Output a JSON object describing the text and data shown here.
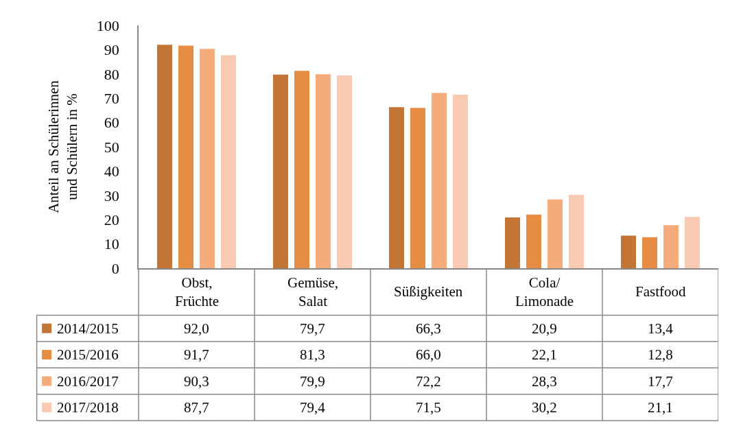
{
  "chart_data": {
    "type": "bar",
    "ylabel": "Anteil an Schülerinnen\nund Schülern in %",
    "categories": [
      "Obst,\nFrüchte",
      "Gemüse,\nSalat",
      "Süßigkeiten",
      "Cola/\nLimonade",
      "Fastfood"
    ],
    "series": [
      {
        "name": "2014/2015",
        "color": "#c37535",
        "values": [
          92.0,
          79.7,
          66.3,
          20.9,
          13.4
        ],
        "value_labels": [
          "92,0",
          "79,7",
          "66,3",
          "20,9",
          "13,4"
        ]
      },
      {
        "name": "2015/2016",
        "color": "#e78c43",
        "values": [
          91.7,
          81.3,
          66.0,
          22.1,
          12.8
        ],
        "value_labels": [
          "91,7",
          "81,3",
          "66,0",
          "22,1",
          "12,8"
        ]
      },
      {
        "name": "2016/2017",
        "color": "#f6ab7a",
        "values": [
          90.3,
          79.9,
          72.2,
          28.3,
          17.7
        ],
        "value_labels": [
          "90,3",
          "79,9",
          "72,2",
          "28,3",
          "17,7"
        ]
      },
      {
        "name": "2017/2018",
        "color": "#f8cab2",
        "values": [
          87.7,
          79.4,
          71.5,
          30.2,
          21.1
        ],
        "value_labels": [
          "87,7",
          "79,4",
          "71,5",
          "30,2",
          "21,1"
        ]
      }
    ],
    "ylim": [
      0,
      100
    ],
    "yticks": [
      0,
      10,
      20,
      30,
      40,
      50,
      60,
      70,
      80,
      90,
      100
    ],
    "legend": "bottom left"
  }
}
